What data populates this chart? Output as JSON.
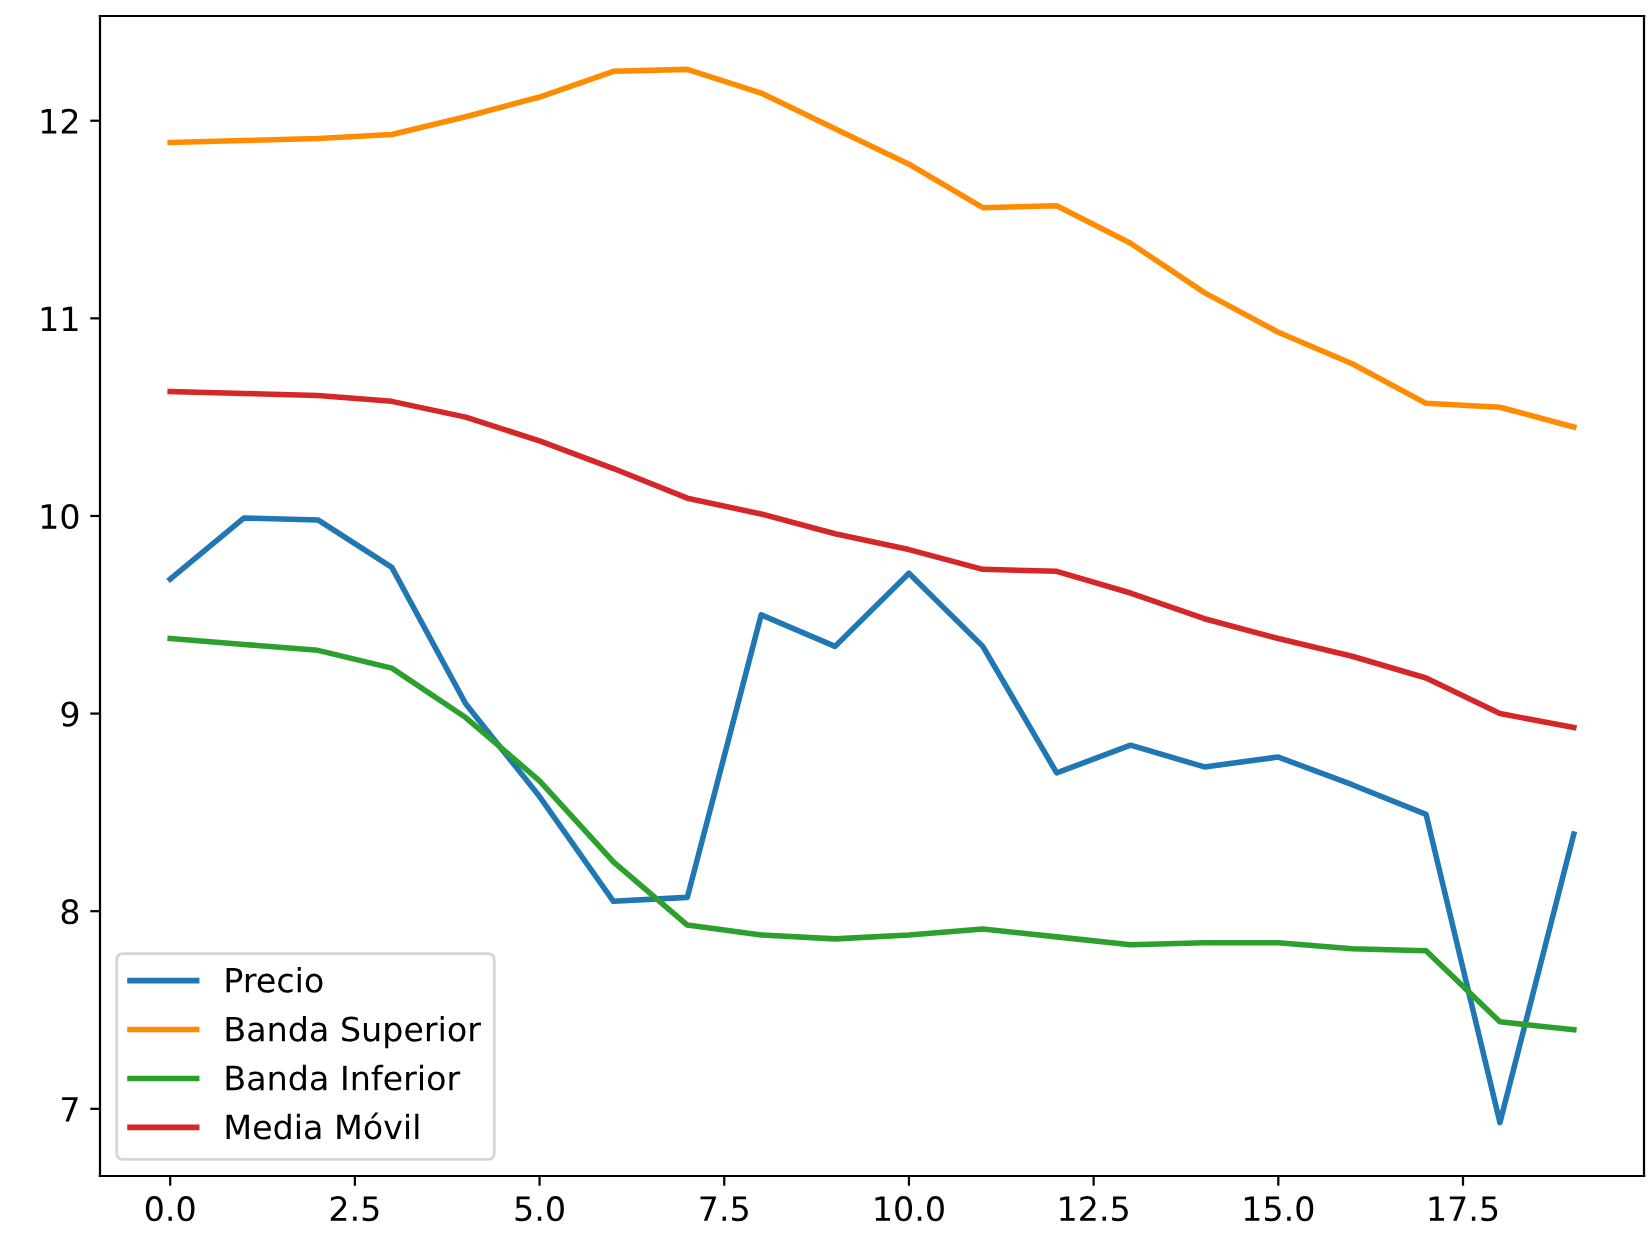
{
  "chart_data": {
    "type": "line",
    "x": [
      0,
      1,
      2,
      3,
      4,
      5,
      6,
      7,
      8,
      9,
      10,
      11,
      12,
      13,
      14,
      15,
      16,
      17,
      18,
      19
    ],
    "series": [
      {
        "name": "Precio",
        "color": "#1f77b4",
        "values": [
          9.68,
          9.99,
          9.98,
          9.74,
          9.05,
          8.58,
          8.05,
          8.07,
          9.5,
          9.34,
          9.71,
          9.34,
          8.7,
          8.84,
          8.73,
          8.78,
          8.64,
          8.49,
          6.93,
          8.39
        ]
      },
      {
        "name": "Banda Superior",
        "color": "#ff8c00",
        "values": [
          11.89,
          11.9,
          11.91,
          11.93,
          12.02,
          12.12,
          12.25,
          12.26,
          12.14,
          11.96,
          11.78,
          11.56,
          11.57,
          11.38,
          11.13,
          10.93,
          10.77,
          10.57,
          10.55,
          10.45
        ]
      },
      {
        "name": "Banda Inferior",
        "color": "#2ca02c",
        "values": [
          9.38,
          9.35,
          9.32,
          9.23,
          8.98,
          8.66,
          8.25,
          7.93,
          7.88,
          7.86,
          7.88,
          7.91,
          7.87,
          7.83,
          7.84,
          7.84,
          7.81,
          7.8,
          7.44,
          7.4
        ]
      },
      {
        "name": "Media Móvil",
        "color": "#d62728",
        "values": [
          10.63,
          10.62,
          10.61,
          10.58,
          10.5,
          10.38,
          10.24,
          10.09,
          10.01,
          9.91,
          9.83,
          9.73,
          9.72,
          9.61,
          9.48,
          9.38,
          9.29,
          9.18,
          9.0,
          8.93
        ]
      }
    ],
    "xlim": [
      -0.95,
      19.95
    ],
    "xticks": [
      {
        "value": 0,
        "label": "0.0"
      },
      {
        "value": 2.5,
        "label": "2.5"
      },
      {
        "value": 5,
        "label": "5.0"
      },
      {
        "value": 7.5,
        "label": "7.5"
      },
      {
        "value": 10,
        "label": "10.0"
      },
      {
        "value": 12.5,
        "label": "12.5"
      },
      {
        "value": 15,
        "label": "15.0"
      },
      {
        "value": 17.5,
        "label": "17.5"
      }
    ],
    "ylim": [
      6.66,
      12.53
    ],
    "yticks": [
      7,
      8,
      9,
      10,
      11,
      12
    ],
    "grid": false,
    "legend": "bottom left",
    "marker": "none",
    "line_style": "solid"
  }
}
